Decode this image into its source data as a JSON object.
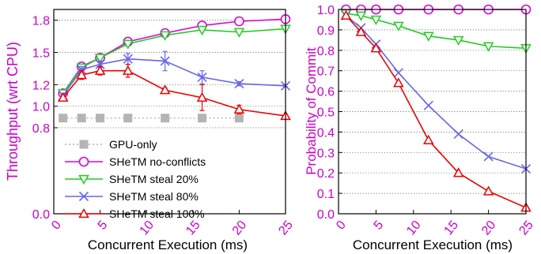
{
  "chart_data": [
    {
      "type": "line",
      "ylabel": "Throughput (wrt CPU)",
      "xlabel": "Concurrent Execution (ms)",
      "xlim": [
        0,
        25
      ],
      "ylim": [
        0,
        1.9
      ],
      "x_ticks": [
        0,
        5,
        10,
        15,
        20,
        25
      ],
      "x_tick_labels": [
        "0",
        "5",
        "10",
        "15",
        "20",
        "25"
      ],
      "y_ticks": [
        0,
        0.8,
        1.0,
        1.2,
        1.5,
        1.8
      ],
      "y_tick_labels": [
        "0.0",
        "0.8",
        "1.0",
        "1.2",
        "1.5",
        "1.8"
      ],
      "y_tick_color": "#cc00cc",
      "ylabel_color": "#cc00cc",
      "grid": "horizontal dotted",
      "legend_position": "lower-left",
      "series": [
        {
          "name": "GPU-only",
          "color": "#b4b4b4",
          "marker": "square",
          "line": "dotted",
          "x": [
            1,
            3,
            5,
            8,
            12,
            16,
            20
          ],
          "y": [
            0.89,
            0.89,
            0.89,
            0.89,
            0.89,
            0.89,
            0.89
          ]
        },
        {
          "name": "SHeTM no-conflicts",
          "color": "#dd00dd",
          "marker": "circle",
          "line": "solid",
          "x": [
            1,
            3,
            5,
            8,
            12,
            16,
            20,
            25
          ],
          "y": [
            1.12,
            1.37,
            1.45,
            1.6,
            1.68,
            1.75,
            1.79,
            1.81
          ]
        },
        {
          "name": "SHeTM steal 20%",
          "color": "#22cc22",
          "marker": "triangle-down",
          "line": "solid",
          "x": [
            1,
            3,
            5,
            8,
            12,
            16,
            20,
            25
          ],
          "y": [
            1.12,
            1.36,
            1.45,
            1.58,
            1.66,
            1.71,
            1.69,
            1.72
          ]
        },
        {
          "name": "SHeTM steal 80%",
          "color": "#6666ee",
          "marker": "x",
          "line": "solid",
          "x": [
            1,
            3,
            5,
            8,
            12,
            16,
            20,
            25
          ],
          "y": [
            1.1,
            1.34,
            1.39,
            1.44,
            1.42,
            1.27,
            1.21,
            1.19
          ],
          "error_bars": [
            0.02,
            0.03,
            0.03,
            0.05,
            0.09,
            0.06,
            0.02,
            0.01
          ]
        },
        {
          "name": "SHeTM steal 100%",
          "color": "#ee0000",
          "marker": "triangle-up",
          "line": "solid",
          "x": [
            1,
            3,
            5,
            8,
            12,
            16,
            20,
            25
          ],
          "y": [
            1.08,
            1.29,
            1.33,
            1.33,
            1.15,
            1.08,
            0.97,
            0.91
          ],
          "error_bars": [
            0.02,
            0.04,
            0.04,
            0.06,
            0.02,
            0.12,
            0.04,
            0.01
          ]
        }
      ]
    },
    {
      "type": "line",
      "ylabel": "Probability of Commit",
      "xlabel": "Concurrent Execution (ms)",
      "xlim": [
        0,
        25
      ],
      "ylim": [
        0,
        1.0
      ],
      "x_ticks": [
        0,
        5,
        10,
        15,
        20,
        25
      ],
      "x_tick_labels": [
        "0",
        "5",
        "10",
        "15",
        "20",
        "25"
      ],
      "y_ticks": [
        0.0,
        0.1,
        0.2,
        0.3,
        0.4,
        0.5,
        0.6,
        0.7,
        0.8,
        0.9,
        1.0
      ],
      "y_tick_labels": [
        "0.0",
        "0.1",
        "0.2",
        "0.3",
        "0.4",
        "0.5",
        "0.6",
        "0.7",
        "0.8",
        "0.9",
        "1.0"
      ],
      "y_tick_color": "#cc00cc",
      "ylabel_color": "#cc00cc",
      "grid": "horizontal dotted",
      "series": [
        {
          "name": "SHeTM no-conflicts",
          "color": "#dd00dd",
          "marker": "circle",
          "line": "solid",
          "x": [
            1,
            3,
            5,
            8,
            12,
            16,
            20,
            25
          ],
          "y": [
            1.0,
            1.0,
            1.0,
            1.0,
            1.0,
            1.0,
            1.0,
            1.0
          ]
        },
        {
          "name": "SHeTM steal 20%",
          "color": "#22cc22",
          "marker": "triangle-down",
          "line": "solid",
          "x": [
            1,
            3,
            5,
            8,
            12,
            16,
            20,
            25
          ],
          "y": [
            0.98,
            0.97,
            0.95,
            0.92,
            0.87,
            0.85,
            0.82,
            0.81
          ]
        },
        {
          "name": "SHeTM steal 80%",
          "color": "#6666ee",
          "marker": "x",
          "line": "solid",
          "x": [
            1,
            3,
            5,
            8,
            12,
            16,
            20,
            25
          ],
          "y": [
            0.97,
            0.91,
            0.83,
            0.69,
            0.53,
            0.39,
            0.28,
            0.22
          ]
        },
        {
          "name": "SHeTM steal 100%",
          "color": "#ee0000",
          "marker": "triangle-up",
          "line": "solid",
          "x": [
            1,
            3,
            5,
            8,
            12,
            16,
            20,
            25
          ],
          "y": [
            0.97,
            0.89,
            0.81,
            0.64,
            0.36,
            0.2,
            0.11,
            0.03
          ]
        }
      ]
    }
  ]
}
